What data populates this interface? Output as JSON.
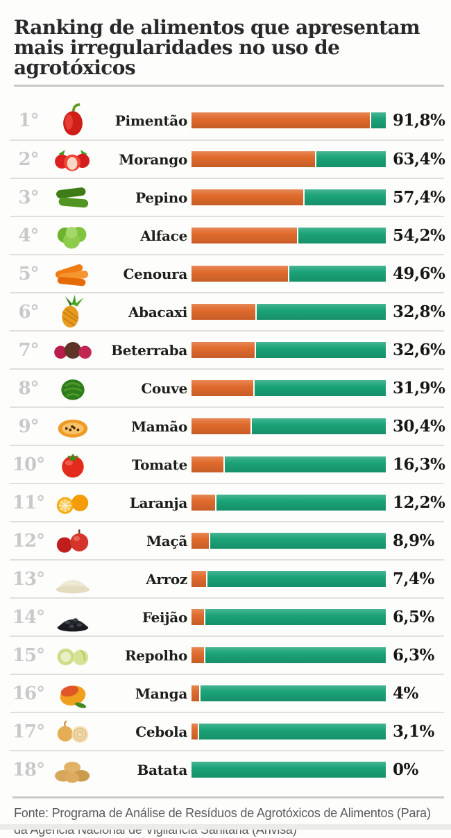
{
  "title": {
    "line1": "Ranking de alimentos que apresentam",
    "line2": "mais irregularidades no uso de agrotóxicos"
  },
  "source": {
    "line1": "Fonte: Programa de Análise de Resíduos de Agrotóxicos de Alimentos (Para)",
    "line2": "da Agência Nacional de Vigilância Sanitária (Anvisa)"
  },
  "chart_data": {
    "type": "bar",
    "orientation": "horizontal",
    "title": "Ranking de alimentos que apresentam mais irregularidades no uso de agrotóxicos",
    "xlim": [
      0,
      100
    ],
    "grid": false,
    "legend": false,
    "ranks": [
      "1°",
      "2°",
      "3°",
      "4°",
      "5°",
      "6°",
      "7°",
      "8°",
      "9°",
      "10°",
      "11°",
      "12°",
      "13°",
      "14°",
      "15°",
      "16°",
      "17°",
      "18°"
    ],
    "categories": [
      "Pimentão",
      "Morango",
      "Pepino",
      "Alface",
      "Cenoura",
      "Abacaxi",
      "Beterraba",
      "Couve",
      "Mamão",
      "Tomate",
      "Laranja",
      "Maçã",
      "Arroz",
      "Feijão",
      "Repolho",
      "Manga",
      "Cebola",
      "Batata"
    ],
    "values": [
      91.8,
      63.4,
      57.4,
      54.2,
      49.6,
      32.8,
      32.6,
      31.9,
      30.4,
      16.3,
      12.2,
      8.9,
      7.4,
      6.5,
      6.3,
      4,
      3.1,
      0
    ],
    "value_labels": [
      "91,8%",
      "63,4%",
      "57,4%",
      "54,2%",
      "49,6%",
      "32,8%",
      "32,6%",
      "31,9%",
      "30,4%",
      "16,3%",
      "12,2%",
      "8,9%",
      "7,4%",
      "6,5%",
      "6,3%",
      "4%",
      "3,1%",
      "0%"
    ],
    "icons": [
      "bell-pepper",
      "strawberries",
      "cucumbers",
      "lettuce",
      "carrots",
      "pineapple",
      "beets",
      "collard",
      "papaya",
      "tomato",
      "oranges",
      "apples",
      "rice",
      "black-beans",
      "cabbage",
      "mango",
      "onions",
      "potatoes"
    ],
    "colors": {
      "value_segment": "#e06a2c",
      "remainder_segment": "#1aa378",
      "rank_text": "#c9c9c9",
      "separator": "#e0dfdd"
    }
  }
}
